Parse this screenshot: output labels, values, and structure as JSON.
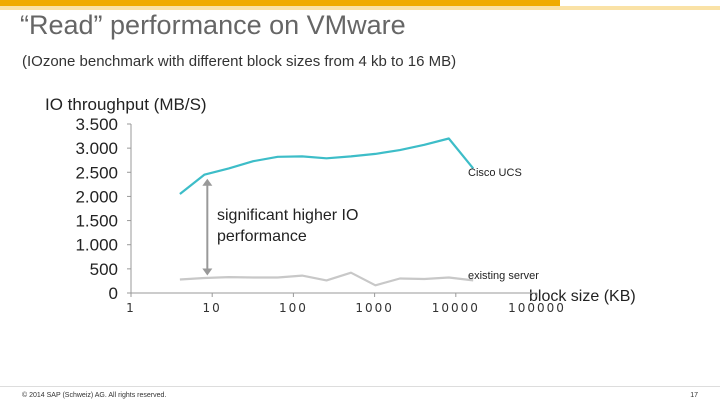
{
  "slide": {
    "title": "“Read” performance on VMware",
    "subtitle": "(IOzone benchmark with different block sizes from 4 kb to 16 MB)",
    "footer_copyright": "© 2014 SAP (Schweiz) AG. All rights reserved.",
    "page_number": "17"
  },
  "colors": {
    "accent": "#f0ab00",
    "cisco": "#3dbdc8",
    "existing": "#c8c8c8",
    "axis": "#999999",
    "arrow": "#999999"
  },
  "chart_data": {
    "type": "line",
    "title": "",
    "ylabel": "IO throughput (MB/S)",
    "xlabel": "block size (KB)",
    "x_scale": "log",
    "xlim": [
      1,
      100000
    ],
    "ylim": [
      0,
      3500
    ],
    "yticks": [
      0,
      500,
      1000,
      1500,
      2000,
      2500,
      3000,
      3500
    ],
    "ytick_labels": [
      "0",
      "500",
      "1.000",
      "1.500",
      "2.000",
      "2.500",
      "3.000",
      "3.500"
    ],
    "xticks": [
      1,
      10,
      100,
      1000,
      10000,
      100000
    ],
    "xtick_labels": [
      "1",
      "10",
      "100",
      "1000",
      "10000",
      "100000"
    ],
    "x": [
      4,
      8,
      16,
      32,
      64,
      128,
      256,
      512,
      1024,
      2048,
      4096,
      8192,
      16384
    ],
    "series": [
      {
        "name": "Cisco UCS",
        "values": [
          2050,
          2450,
          2580,
          2730,
          2820,
          2830,
          2790,
          2830,
          2880,
          2960,
          3070,
          3200,
          2580
        ]
      },
      {
        "name": "existing server",
        "values": [
          280,
          310,
          330,
          320,
          320,
          360,
          260,
          420,
          160,
          300,
          290,
          320,
          260
        ]
      }
    ],
    "annotations": [
      {
        "text": "significant higher IO performance",
        "x": 8,
        "y_from": 320,
        "y_to": 2450
      }
    ]
  }
}
